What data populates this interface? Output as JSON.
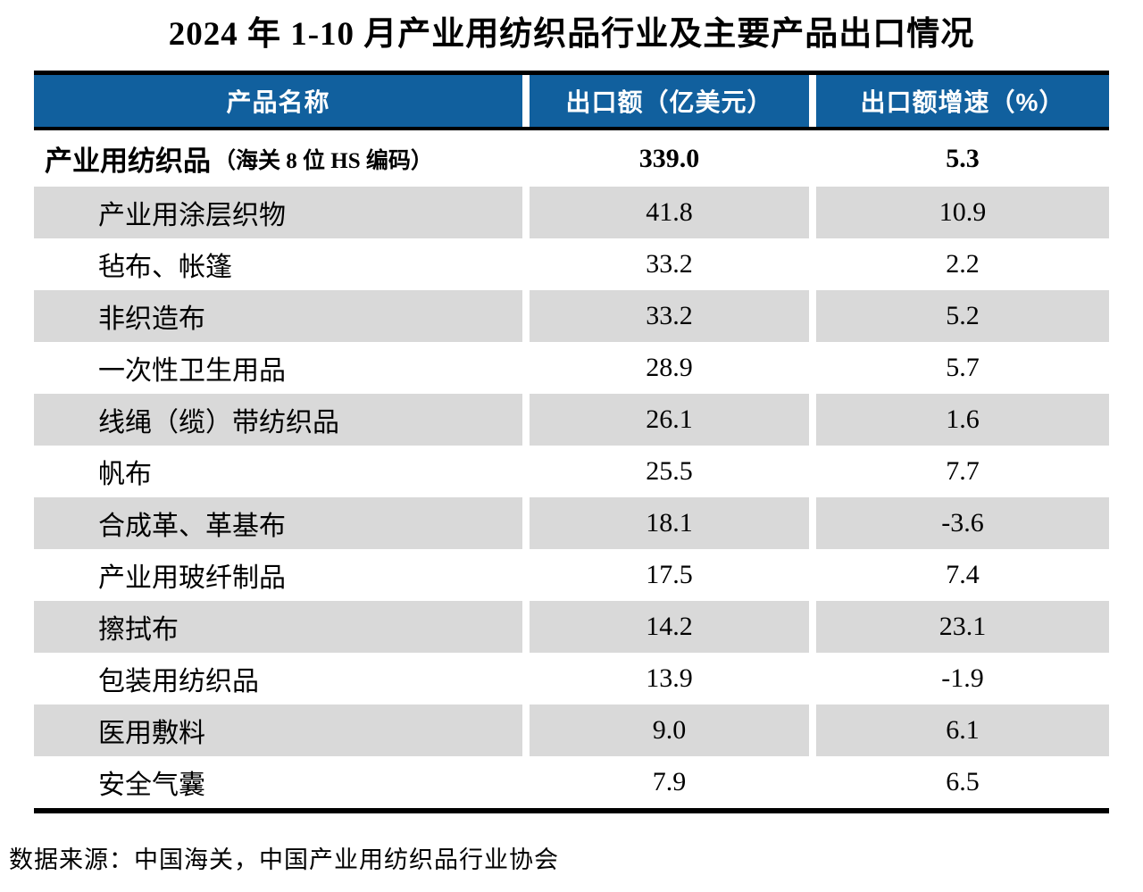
{
  "title": "2024 年 1-10 月产业用纺织品行业及主要产品出口情况",
  "chart_data": {
    "type": "table",
    "title": "2024 年 1-10 月产业用纺织品行业及主要产品出口情况",
    "columns": [
      "产品名称",
      "出口额（亿美元）",
      "出口额增速（%）"
    ],
    "total_row": {
      "name": "产业用纺织品",
      "note": "（海关 8 位 HS 编码）",
      "export_value_billion_usd": "339.0",
      "growth_pct": "5.3"
    },
    "rows": [
      {
        "name": "产业用涂层织物",
        "export_value_billion_usd": "41.8",
        "growth_pct": "10.9"
      },
      {
        "name": "毡布、帐篷",
        "export_value_billion_usd": "33.2",
        "growth_pct": "2.2"
      },
      {
        "name": "非织造布",
        "export_value_billion_usd": "33.2",
        "growth_pct": "5.2"
      },
      {
        "name": "一次性卫生用品",
        "export_value_billion_usd": "28.9",
        "growth_pct": "5.7"
      },
      {
        "name": "线绳（缆）带纺织品",
        "export_value_billion_usd": "26.1",
        "growth_pct": "1.6"
      },
      {
        "name": "帆布",
        "export_value_billion_usd": "25.5",
        "growth_pct": "7.7"
      },
      {
        "name": "合成革、革基布",
        "export_value_billion_usd": "18.1",
        "growth_pct": "-3.6"
      },
      {
        "name": "产业用玻纤制品",
        "export_value_billion_usd": "17.5",
        "growth_pct": "7.4"
      },
      {
        "name": "擦拭布",
        "export_value_billion_usd": "14.2",
        "growth_pct": "23.1"
      },
      {
        "name": "包装用纺织品",
        "export_value_billion_usd": "13.9",
        "growth_pct": "-1.9"
      },
      {
        "name": "医用敷料",
        "export_value_billion_usd": "9.0",
        "growth_pct": "6.1"
      },
      {
        "name": "安全气囊",
        "export_value_billion_usd": "7.9",
        "growth_pct": "6.5"
      }
    ],
    "layout": {
      "alternating_row_shading": true,
      "shaded_rows": "even data rows starting with first sub-row"
    }
  },
  "footer": {
    "source": "数据来源：中国海关，中国产业用纺织品行业协会"
  },
  "colors": {
    "header_bg": "#11609E",
    "header_text": "#FFFFFF",
    "row_alt_bg": "#D9D9D9",
    "border": "#000000",
    "text": "#000000",
    "page_bg": "#FFFFFF"
  }
}
